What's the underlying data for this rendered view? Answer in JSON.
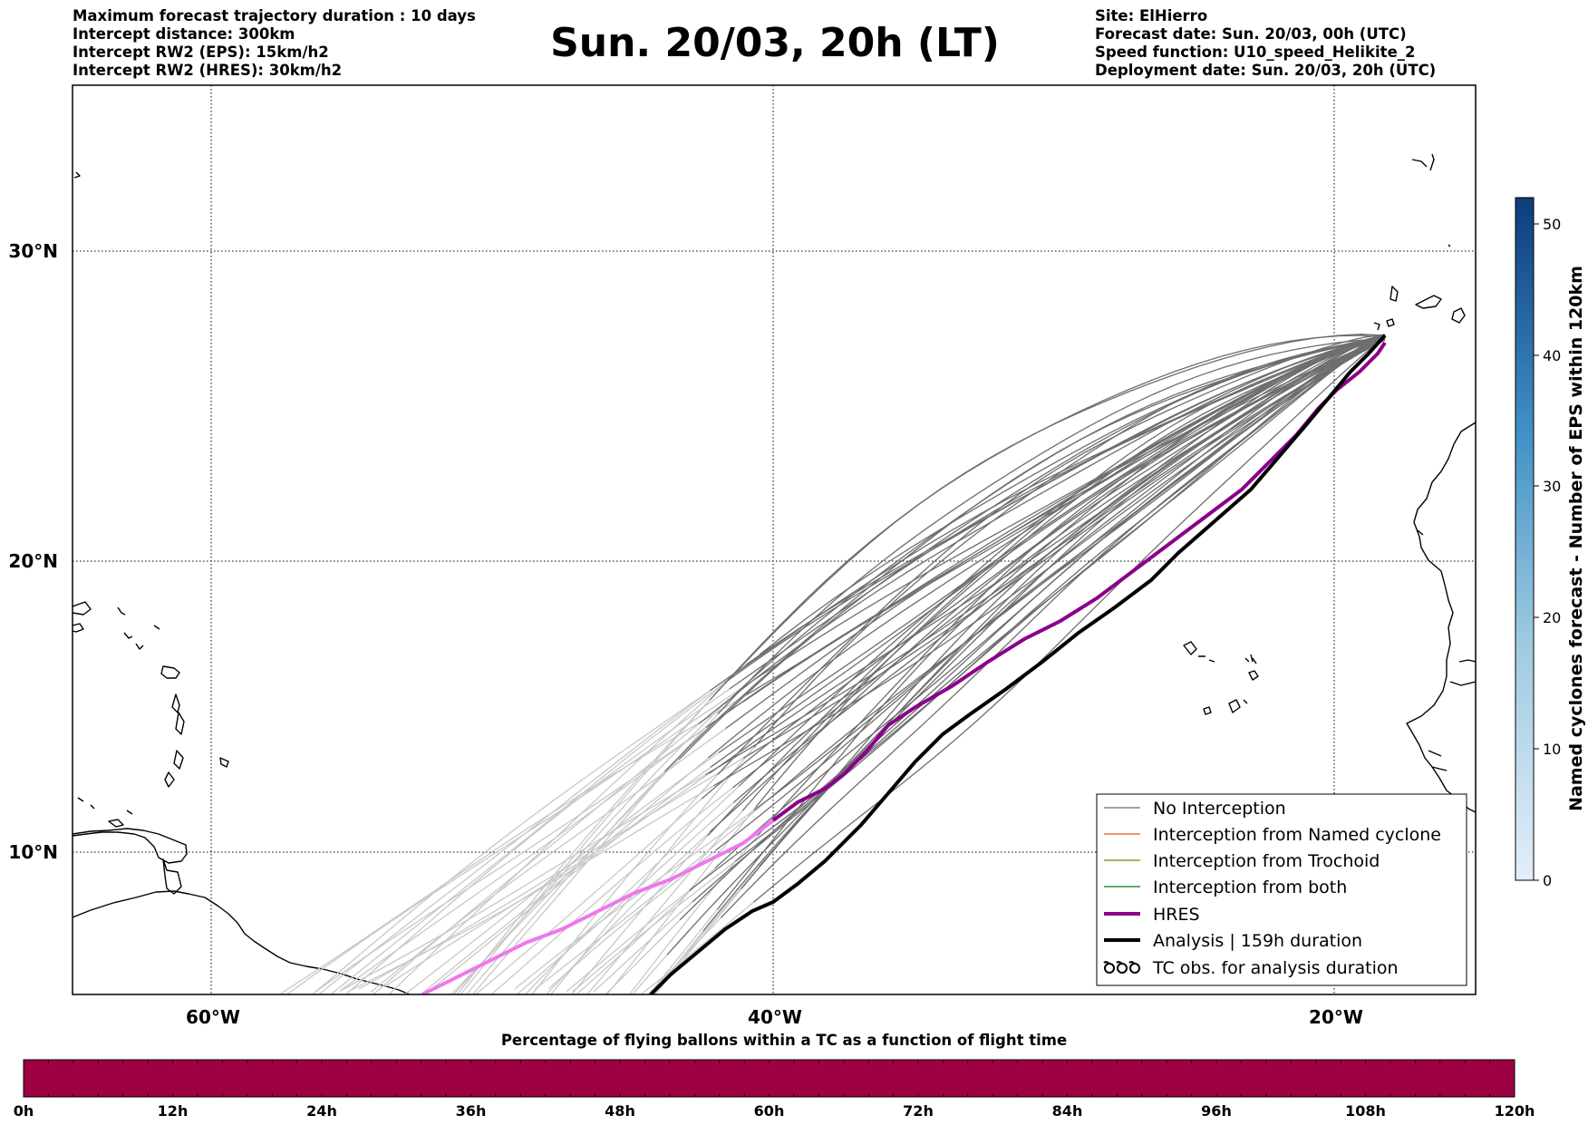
{
  "header": {
    "left_lines": [
      "Maximum forecast trajectory duration : 10 days",
      "Intercept distance: 300km",
      "Intercept RW2 (EPS):  15km/h2",
      "Intercept RW2 (HRES): 30km/h2"
    ],
    "title": "Sun. 20/03, 20h (LT)",
    "right_lines": [
      "Site: ElHierro",
      "Forecast date: Sun. 20/03, 00h (UTC)",
      "Speed function: U10_speed_Helikite_2",
      "Deployment date: Sun. 20/03, 20h (UTC)"
    ]
  },
  "map": {
    "lat_labels": [
      "30°N",
      "20°N",
      "10°N"
    ],
    "lon_labels": [
      "60°W",
      "40°W",
      "20°W"
    ],
    "colors": {
      "no_interception": "#6e6e6e",
      "no_interception_early": "#c8c8c8",
      "named_cyclone": "#e8541c",
      "trochoid": "#808000",
      "both": "#008000",
      "hres": "#8b008b",
      "hres_early": "#ee77ee",
      "analysis": "#000000"
    }
  },
  "legend": {
    "items": [
      {
        "label": "No Interception",
        "color": "#6e6e6e",
        "style": "thin"
      },
      {
        "label": "Interception from Named cyclone",
        "color": "#e8541c",
        "style": "thin"
      },
      {
        "label": "Interception from Trochoid",
        "color": "#808000",
        "style": "thin"
      },
      {
        "label": "Interception from both",
        "color": "#008000",
        "style": "thin"
      },
      {
        "label": "HRES",
        "color": "#8b008b",
        "style": "thick"
      },
      {
        "label": "Analysis | 159h duration",
        "color": "#000000",
        "style": "thick"
      },
      {
        "label": "TC obs. for analysis duration",
        "color": "#000000",
        "style": "symbol"
      }
    ]
  },
  "colorbar": {
    "label": "Named cyclones forecast - Number of EPS within 120km",
    "ticks": [
      "0",
      "10",
      "20",
      "30",
      "40",
      "50"
    ],
    "color_low": "#e3eef9",
    "color_high": "#0b3d7a"
  },
  "percentage_bar": {
    "title": "Percentage of flying ballons within a TC as a function of flight time",
    "ticks": [
      "0h",
      "12h",
      "24h",
      "36h",
      "48h",
      "60h",
      "72h",
      "84h",
      "96h",
      "108h",
      "120h"
    ],
    "color": "#9e0142"
  }
}
